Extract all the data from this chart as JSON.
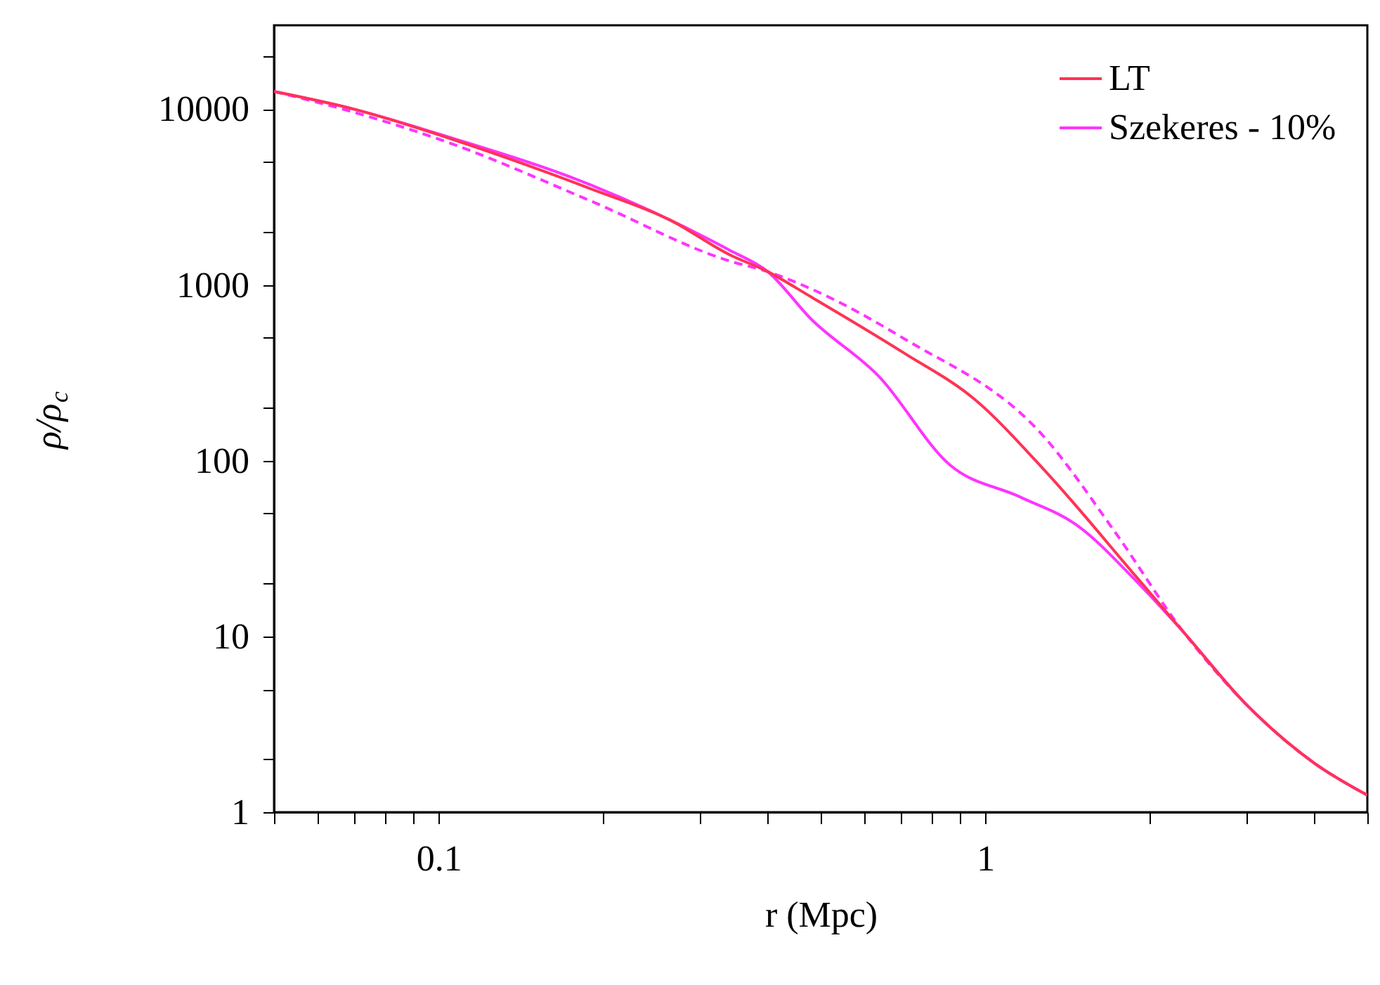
{
  "chart_data": {
    "type": "line",
    "xlabel": "r (Mpc)",
    "ylabel": "ρ/ρ$_{c}$",
    "log": "xy",
    "grid": false,
    "legend": "top right",
    "marker": "none",
    "xlim": [
      0.05,
      5
    ],
    "ylim": [
      1,
      30000
    ],
    "xticks": [
      {
        "value": 0.05,
        "label": null
      },
      {
        "value": 0.06,
        "label": null
      },
      {
        "value": 0.07,
        "label": null
      },
      {
        "value": 0.08,
        "label": null
      },
      {
        "value": 0.09,
        "label": null
      },
      0.1,
      {
        "value": 0.2,
        "label": null
      },
      {
        "value": 0.3,
        "label": null
      },
      {
        "value": 0.4,
        "label": null
      },
      {
        "value": 0.5,
        "label": null
      },
      {
        "value": 0.6,
        "label": null
      },
      {
        "value": 0.7,
        "label": null
      },
      {
        "value": 0.8,
        "label": null
      },
      {
        "value": 0.9,
        "label": null
      },
      1,
      {
        "value": 2,
        "label": null
      },
      {
        "value": 3,
        "label": null
      },
      {
        "value": 4,
        "label": null
      },
      {
        "value": 5,
        "label": null
      }
    ],
    "yticks": [
      1,
      {
        "value": 2,
        "label": null
      },
      {
        "value": 5,
        "label": null
      },
      10,
      {
        "value": 20,
        "label": null
      },
      {
        "value": 50,
        "label": null
      },
      100,
      {
        "value": 200,
        "label": null
      },
      {
        "value": 500,
        "label": null
      },
      1000,
      {
        "value": 2000,
        "label": null
      },
      {
        "value": 5000,
        "label": null
      },
      10000,
      {
        "value": 20000,
        "label": null
      }
    ],
    "series": [
      {
        "name": "LT",
        "color": "#ff3355",
        "line_style": "solid",
        "x": [
          0.05,
          0.07,
          0.105,
          0.19,
          0.265,
          0.34,
          0.4,
          0.48,
          0.71,
          0.955,
          1.28,
          1.89,
          2.31,
          2.98,
          4,
          5
        ],
        "values": [
          12600,
          10000,
          6800,
          3520,
          2340,
          1490,
          1190,
          855,
          410,
          224,
          89,
          21.8,
          10.5,
          4.2,
          1.9,
          1.25
        ]
      },
      {
        "name": "Szekeres - 10%",
        "color": "#ff33ff",
        "line_style": "solid",
        "x": [
          0.05,
          0.07,
          0.105,
          0.19,
          0.34,
          0.4,
          0.48,
          0.64,
          0.86,
          1.16,
          1.47,
          1.89,
          2.31,
          2.98,
          4,
          5
        ],
        "values": [
          12600,
          10000,
          6900,
          3700,
          1580,
          1190,
          640,
          300,
          95,
          62,
          43,
          20.6,
          10.5,
          4.2,
          1.9,
          1.25
        ]
      },
      {
        "color": "#ff33ff",
        "line_style": "dashed",
        "x": [
          0.05,
          0.07,
          0.105,
          0.19,
          0.34,
          0.4,
          0.48,
          0.71,
          1.28,
          1.72,
          2.31,
          2.98,
          4,
          5
        ],
        "values": [
          12600,
          9600,
          6400,
          3000,
          1370,
          1190,
          950,
          495,
          137,
          40,
          10.5,
          4.2,
          1.9,
          1.25
        ]
      }
    ]
  }
}
